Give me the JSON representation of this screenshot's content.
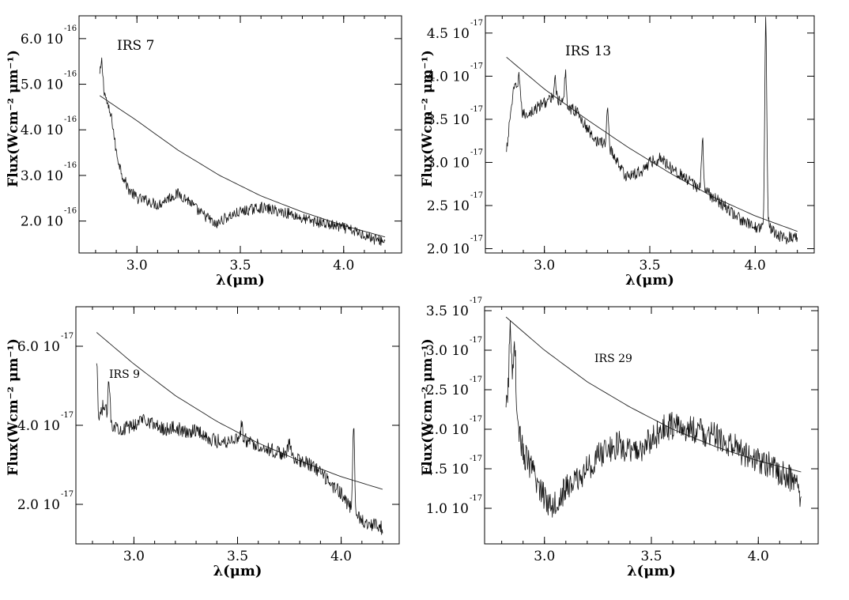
{
  "chart_data": [
    {
      "type": "line",
      "title": "IRS 7",
      "xlabel": "λ(μm)",
      "ylabel": "Flux(Wcm⁻² μm⁻¹)",
      "xlim": [
        2.72,
        4.28
      ],
      "ylim": [
        1.3,
        6.5
      ],
      "exponent": "-16",
      "xticks": [
        {
          "v": 3.0,
          "label": "3.0"
        },
        {
          "v": 3.5,
          "label": "3.5"
        },
        {
          "v": 4.0,
          "label": "4.0"
        }
      ],
      "yticks": [
        {
          "v": 2.0,
          "label": "2.0 10"
        },
        {
          "v": 3.0,
          "label": "3.0 10"
        },
        {
          "v": 4.0,
          "label": "4.0 10"
        },
        {
          "v": 5.0,
          "label": "5.0 10"
        },
        {
          "v": 6.0,
          "label": "6.0 10"
        }
      ],
      "series": [
        {
          "kind": "spectrum",
          "x": [
            2.82,
            2.83,
            2.84,
            2.86,
            2.88,
            2.9,
            2.93,
            2.96,
            3.0,
            3.05,
            3.1,
            3.15,
            3.2,
            3.25,
            3.3,
            3.35,
            3.38,
            3.42,
            3.5,
            3.55,
            3.6,
            3.65,
            3.7,
            3.75,
            3.8,
            3.9,
            4.0,
            4.1,
            4.15,
            4.2
          ],
          "y": [
            5.2,
            5.5,
            4.9,
            4.5,
            4.2,
            3.5,
            3.0,
            2.7,
            2.5,
            2.45,
            2.35,
            2.5,
            2.6,
            2.45,
            2.2,
            2.05,
            1.9,
            2.05,
            2.2,
            2.25,
            2.3,
            2.25,
            2.2,
            2.15,
            2.05,
            1.95,
            1.85,
            1.7,
            1.6,
            1.55
          ],
          "noise": 0.12
        },
        {
          "kind": "continuum",
          "x": [
            2.82,
            3.0,
            3.2,
            3.4,
            3.6,
            3.8,
            4.0,
            4.2
          ],
          "y": [
            4.75,
            4.2,
            3.55,
            3.0,
            2.55,
            2.2,
            1.9,
            1.65
          ]
        }
      ]
    },
    {
      "type": "line",
      "title": "IRS 13",
      "xlabel": "λ(μm)",
      "ylabel": "Flux(Wcm⁻² μm⁻¹)",
      "xlim": [
        2.72,
        4.28
      ],
      "ylim": [
        1.95,
        4.7
      ],
      "exponent": "-17",
      "xticks": [
        {
          "v": 3.0,
          "label": "3.0"
        },
        {
          "v": 3.5,
          "label": "3.5"
        },
        {
          "v": 4.0,
          "label": "4.0"
        }
      ],
      "yticks": [
        {
          "v": 2.0,
          "label": "2.0 10"
        },
        {
          "v": 2.5,
          "label": "2.5 10"
        },
        {
          "v": 3.0,
          "label": "3.0 10"
        },
        {
          "v": 3.5,
          "label": "3.5 10"
        },
        {
          "v": 4.0,
          "label": "4.0 10"
        },
        {
          "v": 4.5,
          "label": "4.5 10"
        }
      ],
      "series": [
        {
          "kind": "spectrum",
          "x": [
            2.82,
            2.84,
            2.86,
            2.88,
            2.9,
            2.95,
            3.0,
            3.05,
            3.1,
            3.15,
            3.2,
            3.25,
            3.3,
            3.35,
            3.38,
            3.42,
            3.46,
            3.5,
            3.55,
            3.6,
            3.65,
            3.7,
            3.75,
            3.8,
            3.85,
            3.9,
            3.95,
            4.0,
            4.03,
            4.05,
            4.07,
            4.1,
            4.15,
            4.2
          ],
          "y": [
            3.1,
            3.6,
            3.9,
            3.7,
            3.55,
            3.6,
            3.7,
            3.75,
            3.65,
            3.6,
            3.4,
            3.25,
            3.2,
            3.0,
            2.85,
            2.85,
            2.9,
            3.0,
            3.05,
            2.95,
            2.85,
            2.75,
            2.7,
            2.6,
            2.5,
            2.4,
            2.3,
            2.25,
            2.25,
            2.4,
            2.25,
            2.15,
            2.12,
            2.15
          ],
          "noise": 0.07
        },
        {
          "kind": "continuum",
          "x": [
            2.82,
            3.0,
            3.2,
            3.4,
            3.6,
            3.8,
            4.0,
            4.2
          ],
          "y": [
            4.22,
            3.85,
            3.5,
            3.17,
            2.87,
            2.6,
            2.38,
            2.2
          ]
        },
        {
          "kind": "peaks",
          "x": [
            2.88,
            3.05,
            3.1,
            3.3,
            3.75,
            4.05
          ],
          "y": [
            4.05,
            4.0,
            4.05,
            3.65,
            3.25,
            4.65
          ]
        }
      ]
    },
    {
      "type": "line",
      "title": "IRS 9",
      "xlabel": "λ(μm)",
      "ylabel": "Flux(Wcm⁻² μm⁻¹)",
      "xlim": [
        2.72,
        4.28
      ],
      "ylim": [
        1.0,
        7.0
      ],
      "exponent": "-17",
      "xticks": [
        {
          "v": 3.0,
          "label": "3.0"
        },
        {
          "v": 3.5,
          "label": "3.5"
        },
        {
          "v": 4.0,
          "label": "4.0"
        }
      ],
      "yticks": [
        {
          "v": 2.0,
          "label": "2.0 10"
        },
        {
          "v": 4.0,
          "label": "4.0 10"
        },
        {
          "v": 6.0,
          "label": "6.0 10"
        }
      ],
      "series": [
        {
          "kind": "spectrum",
          "x": [
            2.82,
            2.85,
            2.88,
            2.9,
            2.95,
            3.0,
            3.05,
            3.1,
            3.15,
            3.2,
            3.25,
            3.3,
            3.35,
            3.4,
            3.45,
            3.5,
            3.55,
            3.6,
            3.65,
            3.7,
            3.75,
            3.8,
            3.85,
            3.9,
            3.95,
            4.0,
            4.03,
            4.06,
            4.1,
            4.15,
            4.2
          ],
          "y": [
            3.8,
            4.5,
            4.2,
            4.0,
            3.9,
            4.0,
            4.2,
            4.0,
            3.9,
            3.95,
            3.8,
            3.9,
            3.7,
            3.6,
            3.6,
            3.7,
            3.6,
            3.5,
            3.4,
            3.3,
            3.3,
            3.1,
            3.0,
            2.8,
            2.5,
            2.3,
            2.0,
            1.8,
            1.6,
            1.5,
            1.4
          ],
          "noise": 0.18
        },
        {
          "kind": "continuum",
          "x": [
            2.82,
            3.0,
            3.2,
            3.4,
            3.6,
            3.8,
            4.0,
            4.2
          ],
          "y": [
            6.35,
            5.55,
            4.75,
            4.1,
            3.55,
            3.1,
            2.7,
            2.38
          ]
        },
        {
          "kind": "peaks",
          "x": [
            2.82,
            2.88,
            3.52,
            3.75,
            4.06
          ],
          "y": [
            5.5,
            5.1,
            4.0,
            3.6,
            4.0
          ]
        }
      ]
    },
    {
      "type": "line",
      "title": "IRS 29",
      "xlabel": "λ(μm)",
      "ylabel": "Flux(Wcm⁻² μm⁻¹)",
      "xlim": [
        2.72,
        4.28
      ],
      "ylim": [
        0.55,
        3.55
      ],
      "exponent": "-17",
      "xticks": [
        {
          "v": 3.0,
          "label": "3.0"
        },
        {
          "v": 3.5,
          "label": "3.5"
        },
        {
          "v": 4.0,
          "label": "4.0"
        }
      ],
      "yticks": [
        {
          "v": 1.0,
          "label": "1.0 10"
        },
        {
          "v": 1.5,
          "label": "1.5 10"
        },
        {
          "v": 2.0,
          "label": "2.0 10"
        },
        {
          "v": 2.5,
          "label": "2.5 10"
        },
        {
          "v": 3.0,
          "label": "3.0 10"
        },
        {
          "v": 3.5,
          "label": "3.5 10"
        }
      ],
      "series": [
        {
          "kind": "spectrum",
          "x": [
            2.82,
            2.84,
            2.86,
            2.88,
            2.9,
            2.93,
            2.96,
            3.0,
            3.03,
            3.06,
            3.1,
            3.15,
            3.2,
            3.25,
            3.3,
            3.35,
            3.4,
            3.45,
            3.5,
            3.55,
            3.6,
            3.65,
            3.7,
            3.75,
            3.8,
            3.9,
            4.0,
            4.1,
            4.15,
            4.18,
            4.2
          ],
          "y": [
            2.2,
            2.8,
            2.5,
            2.0,
            1.7,
            1.55,
            1.35,
            1.15,
            1.05,
            1.1,
            1.25,
            1.35,
            1.5,
            1.65,
            1.75,
            1.8,
            1.7,
            1.75,
            1.85,
            2.0,
            2.05,
            2.0,
            2.0,
            1.95,
            1.9,
            1.75,
            1.6,
            1.45,
            1.38,
            1.35,
            1.0
          ],
          "noise": 0.18
        },
        {
          "kind": "continuum",
          "x": [
            2.82,
            3.0,
            3.2,
            3.4,
            3.6,
            3.8,
            4.0,
            4.2
          ],
          "y": [
            3.42,
            3.0,
            2.6,
            2.28,
            2.0,
            1.78,
            1.6,
            1.46
          ]
        },
        {
          "kind": "peaks",
          "x": [
            2.84,
            2.86,
            4.05
          ],
          "y": [
            3.3,
            3.2,
            1.65
          ]
        }
      ]
    }
  ]
}
